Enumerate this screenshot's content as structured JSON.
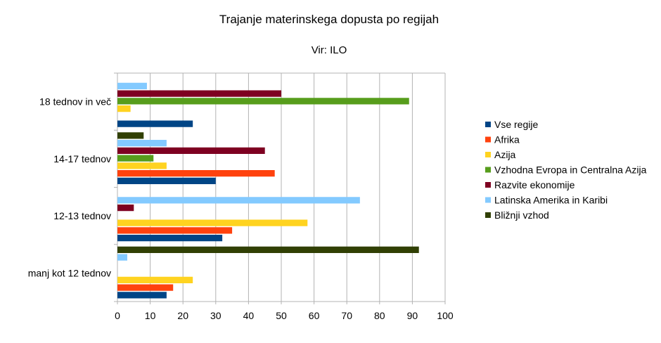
{
  "chart_data": {
    "type": "bar",
    "orientation": "horizontal",
    "title": "Trajanje materinskega dopusta po regijah",
    "subtitle": "Vir: ILO",
    "categories": [
      "manj kot 12 tednov",
      "12-13 tednov",
      "14-17 tednov",
      "18 tednov in več"
    ],
    "series": [
      {
        "name": "Vse regije",
        "color": "#004586",
        "values": [
          15,
          32,
          30,
          23
        ]
      },
      {
        "name": "Afrika",
        "color": "#ff420e",
        "values": [
          17,
          35,
          48,
          0
        ]
      },
      {
        "name": "Azija",
        "color": "#ffd320",
        "values": [
          23,
          58,
          15,
          4
        ]
      },
      {
        "name": "Vzhodna Evropa in Centralna Azija",
        "color": "#579d1c",
        "values": [
          0,
          0,
          11,
          89
        ]
      },
      {
        "name": "Razvite ekonomije",
        "color": "#7e0021",
        "values": [
          0,
          5,
          45,
          50
        ]
      },
      {
        "name": "Latinska Amerika in Karibi",
        "color": "#83caff",
        "values": [
          3,
          74,
          15,
          9
        ]
      },
      {
        "name": "Bližnji vzhod",
        "color": "#314004",
        "values": [
          92,
          0,
          8,
          0
        ]
      }
    ],
    "xlim": [
      0,
      100
    ],
    "xticks": [
      0,
      10,
      20,
      30,
      40,
      50,
      60,
      70,
      80,
      90,
      100
    ],
    "grid": true,
    "legend": "right"
  }
}
